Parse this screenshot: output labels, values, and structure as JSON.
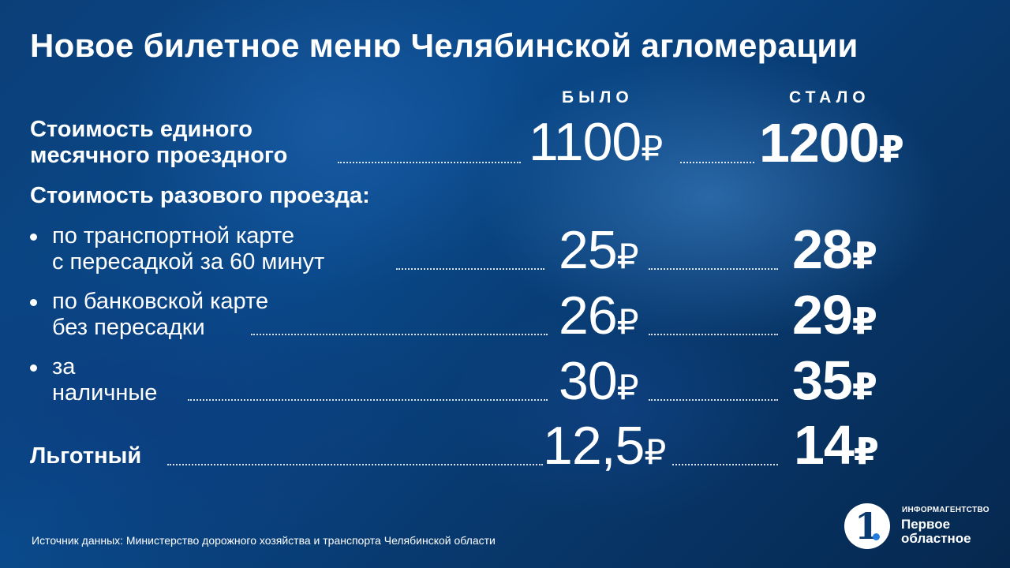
{
  "title": "Новое билетное меню Челябинской агломерации",
  "columns": {
    "before": "БЫЛО",
    "after": "СТАЛО"
  },
  "monthly": {
    "line1": "Стоимость единого",
    "line2": "месячного проездного",
    "before": "1100",
    "after": "1200"
  },
  "single_heading": "Стоимость разового проезда:",
  "items": [
    {
      "line1": "по транспортной карте",
      "line2": "с пересадкой за 60 минут",
      "before": "25",
      "after": "28"
    },
    {
      "line1": "по банковской карте",
      "line2": "без пересадки",
      "before": "26",
      "after": "29"
    },
    {
      "line1": "за",
      "line2": "наличные",
      "before": "30",
      "after": "35"
    }
  ],
  "discount": {
    "label": "Льготный",
    "before": "12,5",
    "after": "14"
  },
  "currency": "₽",
  "source": "Источник данных: Министерство дорожного хозяйства и транспорта Челябинской области",
  "logo": {
    "digit": "1",
    "small": "ИНФОРМАГЕНТСТВО",
    "line1": "Первое",
    "line2": "областное"
  }
}
